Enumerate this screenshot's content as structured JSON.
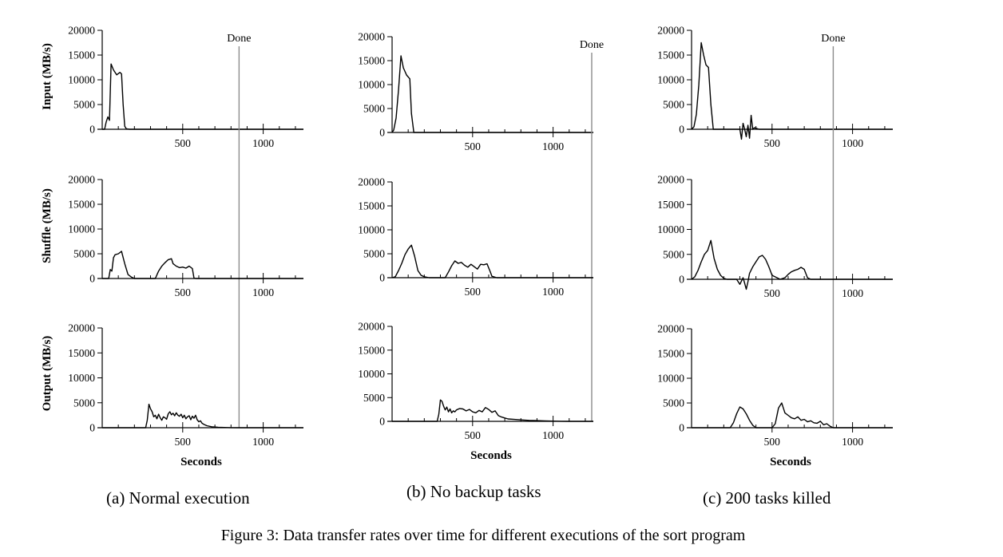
{
  "figure_caption": "Figure 3: Data transfer rates over time for different executions of the sort program",
  "subcaptions": [
    "(a) Normal execution",
    "(b) No backup tasks",
    "(c) 200 tasks killed"
  ],
  "done_label": "Done",
  "xlabel": "Seconds",
  "row_ylabels": [
    "Input (MB/s)",
    "Shuffle (MB/s)",
    "Output (MB/s)"
  ],
  "colors": {
    "line": "#000000",
    "done_line": "#8c8c8c"
  },
  "chart_data": [
    {
      "type": "line",
      "panel": "a",
      "subplot": "Input (MB/s)",
      "xlim": [
        0,
        1250
      ],
      "ylim": [
        0,
        20000
      ],
      "x_ticks": [
        500,
        1000
      ],
      "y_ticks": [
        0,
        5000,
        10000,
        15000,
        20000
      ],
      "done_x": 850,
      "series": [
        {
          "x": [
            0,
            15,
            25,
            35,
            45,
            55,
            70,
            90,
            110,
            120,
            130,
            140,
            150,
            170,
            200,
            1250
          ],
          "y": [
            0,
            0,
            1500,
            2500,
            1800,
            13200,
            12000,
            11000,
            11500,
            11200,
            5000,
            600,
            100,
            0,
            0,
            0
          ]
        }
      ]
    },
    {
      "type": "line",
      "panel": "a",
      "subplot": "Shuffle (MB/s)",
      "xlim": [
        0,
        1250
      ],
      "ylim": [
        0,
        20000
      ],
      "x_ticks": [
        500,
        1000
      ],
      "y_ticks": [
        0,
        5000,
        10000,
        15000,
        20000
      ],
      "done_x": 850,
      "series": [
        {
          "x": [
            0,
            40,
            50,
            60,
            70,
            80,
            100,
            120,
            140,
            160,
            180,
            200,
            230,
            330,
            350,
            370,
            390,
            410,
            430,
            440,
            460,
            480,
            500,
            520,
            540,
            560,
            570,
            580,
            1250
          ],
          "y": [
            0,
            0,
            1800,
            1500,
            4200,
            4800,
            5000,
            5500,
            3000,
            800,
            300,
            0,
            0,
            0,
            1500,
            2500,
            3200,
            3800,
            4000,
            3000,
            2500,
            2200,
            2300,
            2100,
            2500,
            2000,
            100,
            0,
            0
          ]
        }
      ]
    },
    {
      "type": "line",
      "panel": "a",
      "subplot": "Output (MB/s)",
      "xlim": [
        0,
        1250
      ],
      "ylim": [
        0,
        20000
      ],
      "x_ticks": [
        500,
        1000
      ],
      "y_ticks": [
        0,
        5000,
        10000,
        15000,
        20000
      ],
      "done_x": 850,
      "series": [
        {
          "x": [
            0,
            270,
            280,
            290,
            300,
            310,
            320,
            330,
            340,
            350,
            360,
            370,
            380,
            390,
            400,
            410,
            420,
            430,
            440,
            450,
            460,
            470,
            480,
            490,
            500,
            510,
            520,
            530,
            540,
            550,
            560,
            570,
            580,
            590,
            600,
            610,
            620,
            630,
            650,
            680,
            720,
            760,
            800,
            850,
            1250
          ],
          "y": [
            0,
            0,
            1500,
            4700,
            3800,
            3200,
            2200,
            2500,
            1800,
            2700,
            2000,
            1500,
            2200,
            2000,
            1700,
            2800,
            3200,
            2600,
            2900,
            2400,
            3000,
            2500,
            2300,
            2700,
            2000,
            2500,
            1800,
            2200,
            2400,
            1600,
            2300,
            1900,
            2500,
            1600,
            1200,
            1400,
            900,
            700,
            400,
            200,
            100,
            50,
            20,
            0,
            0
          ]
        }
      ]
    },
    {
      "type": "line",
      "panel": "b",
      "subplot": "Input (MB/s)",
      "xlim": [
        0,
        1250
      ],
      "ylim": [
        0,
        20000
      ],
      "x_ticks": [
        500,
        1000
      ],
      "y_ticks": [
        0,
        5000,
        10000,
        15000,
        20000
      ],
      "done_x": 1240,
      "series": [
        {
          "x": [
            0,
            10,
            25,
            40,
            55,
            70,
            90,
            110,
            120,
            135,
            1250
          ],
          "y": [
            0,
            500,
            3000,
            9000,
            16000,
            13500,
            12000,
            11200,
            4000,
            0,
            0
          ]
        }
      ]
    },
    {
      "type": "line",
      "panel": "b",
      "subplot": "Shuffle (MB/s)",
      "xlim": [
        0,
        1250
      ],
      "ylim": [
        0,
        20000
      ],
      "x_ticks": [
        500,
        1000
      ],
      "y_ticks": [
        0,
        5000,
        10000,
        15000,
        20000
      ],
      "done_x": 1240,
      "series": [
        {
          "x": [
            0,
            20,
            40,
            60,
            80,
            100,
            120,
            140,
            160,
            180,
            200,
            230,
            330,
            350,
            370,
            390,
            410,
            430,
            450,
            470,
            490,
            510,
            530,
            550,
            570,
            590,
            610,
            620,
            650,
            1250
          ],
          "y": [
            0,
            200,
            1500,
            3000,
            4800,
            6000,
            6800,
            4500,
            1500,
            500,
            200,
            0,
            0,
            1200,
            2500,
            3500,
            3000,
            3200,
            2600,
            2200,
            2800,
            2300,
            1800,
            2800,
            2700,
            2900,
            1200,
            300,
            0,
            0
          ]
        }
      ]
    },
    {
      "type": "line",
      "panel": "b",
      "subplot": "Output (MB/s)",
      "xlim": [
        0,
        1250
      ],
      "ylim": [
        0,
        20000
      ],
      "x_ticks": [
        500,
        1000
      ],
      "y_ticks": [
        0,
        5000,
        10000,
        15000,
        20000
      ],
      "done_x": 1240,
      "series": [
        {
          "x": [
            0,
            280,
            290,
            300,
            310,
            320,
            330,
            340,
            350,
            360,
            370,
            380,
            390,
            400,
            420,
            440,
            460,
            480,
            500,
            520,
            540,
            560,
            580,
            600,
            620,
            640,
            660,
            680,
            700,
            720,
            760,
            800,
            850,
            900,
            950,
            1000,
            1050,
            1100,
            1250
          ],
          "y": [
            0,
            0,
            1500,
            4500,
            4200,
            3200,
            2400,
            3000,
            2000,
            2600,
            1800,
            2200,
            2000,
            2400,
            2700,
            2600,
            2200,
            2500,
            2000,
            1800,
            2300,
            2000,
            2900,
            2500,
            1900,
            2200,
            1200,
            900,
            700,
            500,
            400,
            300,
            200,
            150,
            100,
            50,
            20,
            0,
            0
          ]
        }
      ]
    },
    {
      "type": "line",
      "panel": "c",
      "subplot": "Input (MB/s)",
      "xlim": [
        0,
        1250
      ],
      "ylim": [
        0,
        20000
      ],
      "x_ticks": [
        500,
        1000
      ],
      "y_ticks": [
        0,
        5000,
        10000,
        15000,
        20000
      ],
      "done_x": 880,
      "series": [
        {
          "x": [
            0,
            15,
            30,
            45,
            60,
            75,
            90,
            105,
            120,
            135,
            150,
            300,
            310,
            320,
            330,
            340,
            350,
            360,
            370,
            380,
            390,
            420,
            1250
          ],
          "y": [
            0,
            500,
            3000,
            9000,
            17500,
            15000,
            13000,
            12500,
            5000,
            0,
            0,
            0,
            -2000,
            1200,
            0,
            -1500,
            800,
            -1800,
            2800,
            0,
            300,
            0,
            0
          ]
        }
      ]
    },
    {
      "type": "line",
      "panel": "c",
      "subplot": "Shuffle (MB/s)",
      "xlim": [
        0,
        1250
      ],
      "ylim": [
        0,
        20000
      ],
      "x_ticks": [
        500,
        1000
      ],
      "y_ticks": [
        0,
        5000,
        10000,
        15000,
        20000
      ],
      "done_x": 880,
      "series": [
        {
          "x": [
            0,
            20,
            40,
            60,
            80,
            100,
            120,
            140,
            160,
            180,
            200,
            220,
            250,
            280,
            300,
            320,
            330,
            340,
            350,
            360,
            380,
            400,
            420,
            440,
            460,
            480,
            500,
            550,
            580,
            600,
            620,
            640,
            660,
            680,
            700,
            720,
            740,
            1250
          ],
          "y": [
            0,
            500,
            1800,
            3500,
            5000,
            5800,
            7800,
            4200,
            2000,
            800,
            200,
            0,
            0,
            0,
            -1000,
            300,
            -800,
            -2000,
            -500,
            1200,
            2500,
            3500,
            4500,
            4800,
            4000,
            2500,
            800,
            0,
            300,
            1000,
            1500,
            1800,
            2000,
            2400,
            2000,
            300,
            0,
            0
          ]
        }
      ]
    },
    {
      "type": "line",
      "panel": "c",
      "subplot": "Output (MB/s)",
      "xlim": [
        0,
        1250
      ],
      "ylim": [
        0,
        20000
      ],
      "x_ticks": [
        500,
        1000
      ],
      "y_ticks": [
        0,
        5000,
        10000,
        15000,
        20000
      ],
      "done_x": 880,
      "series": [
        {
          "x": [
            0,
            240,
            260,
            280,
            300,
            320,
            340,
            360,
            380,
            400,
            500,
            520,
            540,
            560,
            570,
            580,
            600,
            620,
            640,
            660,
            680,
            700,
            720,
            740,
            760,
            780,
            800,
            820,
            840,
            860,
            880,
            1250
          ],
          "y": [
            0,
            0,
            1000,
            2800,
            4200,
            3800,
            2800,
            1500,
            500,
            0,
            0,
            800,
            4000,
            5000,
            4000,
            3000,
            2500,
            2000,
            1800,
            2200,
            1500,
            1700,
            1200,
            1400,
            1000,
            900,
            1300,
            600,
            800,
            300,
            0,
            0
          ]
        }
      ]
    }
  ]
}
